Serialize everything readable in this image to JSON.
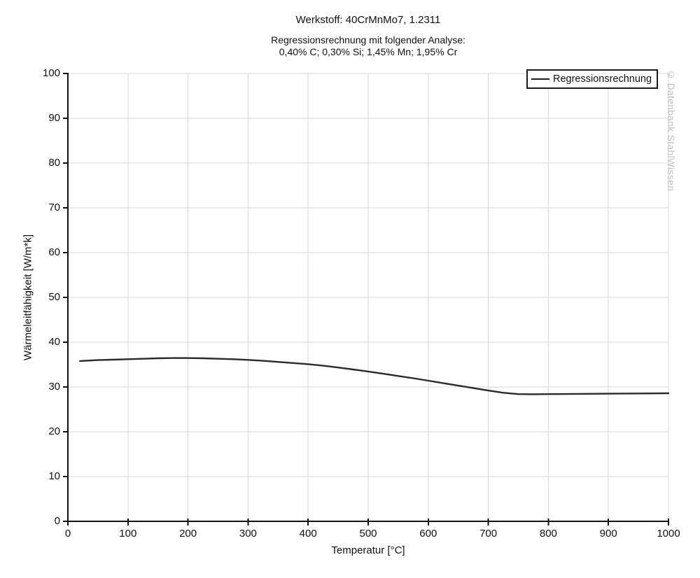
{
  "header": {
    "title": "Werkstoff: 40CrMnMo7, 1.2311",
    "subtitle1": "Regressionsrechnung mit folgender Analyse:",
    "subtitle2": "0,40% C; 0,30% Si; 1,45% Mn; 1,95% Cr"
  },
  "watermark": "© Datenbank StahlWissen",
  "chart_data": {
    "type": "line",
    "title": "Werkstoff: 40CrMnMo7, 1.2311",
    "xlabel": "Temperatur [°C]",
    "ylabel": "Wärmeleitfähigkeit [W/m*k]",
    "xlim": [
      0,
      1000
    ],
    "ylim": [
      0,
      100
    ],
    "x_ticks": [
      0,
      100,
      200,
      300,
      400,
      500,
      600,
      700,
      800,
      900,
      1000
    ],
    "y_ticks": [
      0,
      10,
      20,
      30,
      40,
      50,
      60,
      70,
      80,
      90,
      100
    ],
    "grid": true,
    "legend_position": "top-right",
    "colors": {
      "curve": "#2a2a2a",
      "grid": "#d7d7d7",
      "axis": "#111111"
    },
    "series": [
      {
        "name": "Regressionsrechnung",
        "points": [
          [
            20,
            35.8
          ],
          [
            50,
            36.0
          ],
          [
            75,
            36.1
          ],
          [
            100,
            36.2
          ],
          [
            125,
            36.3
          ],
          [
            150,
            36.4
          ],
          [
            175,
            36.45
          ],
          [
            200,
            36.45
          ],
          [
            225,
            36.4
          ],
          [
            250,
            36.3
          ],
          [
            275,
            36.2
          ],
          [
            300,
            36.05
          ],
          [
            325,
            35.85
          ],
          [
            350,
            35.6
          ],
          [
            375,
            35.35
          ],
          [
            400,
            35.1
          ],
          [
            425,
            34.75
          ],
          [
            450,
            34.35
          ],
          [
            475,
            33.9
          ],
          [
            500,
            33.45
          ],
          [
            525,
            32.95
          ],
          [
            550,
            32.45
          ],
          [
            575,
            31.95
          ],
          [
            600,
            31.4
          ],
          [
            625,
            30.85
          ],
          [
            650,
            30.3
          ],
          [
            675,
            29.75
          ],
          [
            700,
            29.2
          ],
          [
            725,
            28.7
          ],
          [
            750,
            28.4
          ],
          [
            775,
            28.38
          ],
          [
            800,
            28.4
          ],
          [
            850,
            28.45
          ],
          [
            900,
            28.5
          ],
          [
            950,
            28.55
          ],
          [
            1000,
            28.6
          ]
        ]
      }
    ]
  }
}
